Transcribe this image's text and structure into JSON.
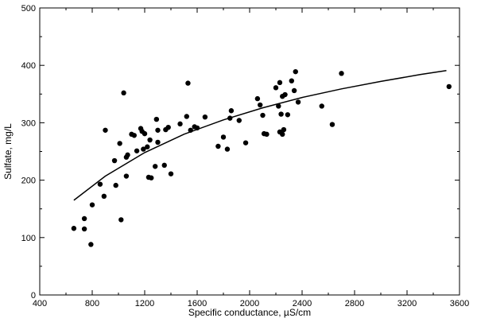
{
  "chart_data": {
    "type": "scatter",
    "xlabel": "Specific conductance, µS/cm",
    "ylabel": "Sulfate, mg/L",
    "xlim": [
      400,
      3600
    ],
    "ylim": [
      0,
      500
    ],
    "xticks": [
      "400",
      "800",
      "1200",
      "1600",
      "2000",
      "2400",
      "2800",
      "3200",
      "3600"
    ],
    "yticks": [
      "0",
      "100",
      "200",
      "300",
      "400",
      "500"
    ],
    "grid": false,
    "legend": "none",
    "series": [
      {
        "kind": "points",
        "points": [
          [
            660,
            116
          ],
          [
            740,
            133
          ],
          [
            740,
            115
          ],
          [
            790,
            88
          ],
          [
            800,
            157
          ],
          [
            860,
            193
          ],
          [
            890,
            172
          ],
          [
            900,
            287
          ],
          [
            970,
            234
          ],
          [
            980,
            191
          ],
          [
            1010,
            264
          ],
          [
            1020,
            131
          ],
          [
            1040,
            352
          ],
          [
            1060,
            207
          ],
          [
            1060,
            240
          ],
          [
            1070,
            244
          ],
          [
            1100,
            280
          ],
          [
            1120,
            278
          ],
          [
            1140,
            251
          ],
          [
            1170,
            290
          ],
          [
            1180,
            285
          ],
          [
            1190,
            254
          ],
          [
            1200,
            281
          ],
          [
            1220,
            258
          ],
          [
            1230,
            205
          ],
          [
            1240,
            270
          ],
          [
            1250,
            204
          ],
          [
            1280,
            224
          ],
          [
            1290,
            306
          ],
          [
            1300,
            266
          ],
          [
            1300,
            287
          ],
          [
            1350,
            226
          ],
          [
            1360,
            288
          ],
          [
            1380,
            292
          ],
          [
            1400,
            211
          ],
          [
            1470,
            298
          ],
          [
            1520,
            311
          ],
          [
            1530,
            369
          ],
          [
            1550,
            287
          ],
          [
            1580,
            293
          ],
          [
            1600,
            291
          ],
          [
            1660,
            310
          ],
          [
            1760,
            259
          ],
          [
            1800,
            275
          ],
          [
            1830,
            254
          ],
          [
            1850,
            308
          ],
          [
            1860,
            321
          ],
          [
            1920,
            304
          ],
          [
            1970,
            265
          ],
          [
            2060,
            342
          ],
          [
            2080,
            331
          ],
          [
            2100,
            313
          ],
          [
            2110,
            281
          ],
          [
            2130,
            280
          ],
          [
            2200,
            361
          ],
          [
            2220,
            329
          ],
          [
            2230,
            370
          ],
          [
            2230,
            284
          ],
          [
            2240,
            315
          ],
          [
            2250,
            346
          ],
          [
            2250,
            280
          ],
          [
            2260,
            288
          ],
          [
            2270,
            349
          ],
          [
            2290,
            314
          ],
          [
            2320,
            373
          ],
          [
            2340,
            356
          ],
          [
            2350,
            389
          ],
          [
            2370,
            336
          ],
          [
            2550,
            329
          ],
          [
            2630,
            297
          ],
          [
            2700,
            386
          ],
          [
            3520,
            363
          ]
        ],
        "color": "#000000"
      },
      {
        "kind": "curve",
        "x": [
          660,
          900,
          1200,
          1500,
          1800,
          2100,
          2400,
          2700,
          3000,
          3300,
          3500
        ],
        "y": [
          165,
          207,
          248,
          280,
          305,
          326,
          344,
          359,
          372,
          384,
          391
        ],
        "color": "#000000"
      }
    ]
  }
}
